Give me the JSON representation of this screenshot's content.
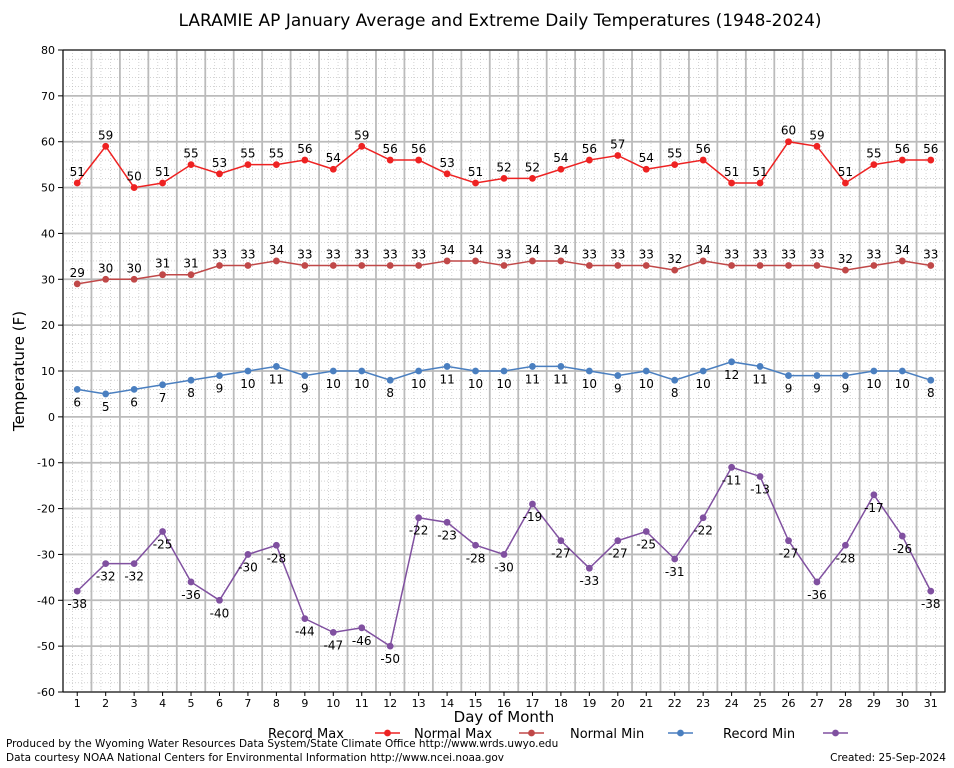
{
  "chart_data": {
    "type": "line",
    "title": "LARAMIE AP January Average and Extreme Daily Temperatures (1948-2024)",
    "xlabel": "Day of Month",
    "ylabel": "Temperature (F)",
    "ylim": [
      -60,
      80
    ],
    "yticks": [
      -60,
      -50,
      -40,
      -30,
      -20,
      -10,
      0,
      10,
      20,
      30,
      40,
      50,
      60,
      70,
      80
    ],
    "categories": [
      "1",
      "2",
      "3",
      "4",
      "5",
      "6",
      "7",
      "8",
      "9",
      "10",
      "11",
      "12",
      "13",
      "14",
      "15",
      "16",
      "17",
      "18",
      "19",
      "20",
      "21",
      "22",
      "23",
      "24",
      "25",
      "26",
      "27",
      "28",
      "29",
      "30",
      "31"
    ],
    "grid": true,
    "legend_position": "bottom",
    "series": [
      {
        "name": "Record Max",
        "color": "#ee2222",
        "label_position": "above",
        "values": [
          51,
          59,
          50,
          51,
          55,
          53,
          55,
          55,
          56,
          54,
          59,
          56,
          56,
          53,
          51,
          52,
          52,
          54,
          56,
          57,
          54,
          55,
          56,
          51,
          51,
          60,
          59,
          51,
          55,
          56,
          56
        ]
      },
      {
        "name": "Normal Max",
        "color": "#c04848",
        "label_position": "above",
        "values": [
          29,
          30,
          30,
          31,
          31,
          33,
          33,
          34,
          33,
          33,
          33,
          33,
          33,
          34,
          34,
          33,
          34,
          34,
          33,
          33,
          33,
          32,
          34,
          33,
          33,
          33,
          33,
          32,
          33,
          34,
          33
        ]
      },
      {
        "name": "Normal Min",
        "color": "#4a7fc0",
        "label_position": "below",
        "values": [
          6,
          5,
          6,
          7,
          8,
          9,
          10,
          11,
          9,
          10,
          10,
          8,
          10,
          11,
          10,
          10,
          11,
          11,
          10,
          9,
          10,
          8,
          10,
          12,
          11,
          9,
          9,
          9,
          10,
          10,
          8
        ]
      },
      {
        "name": "Record Min",
        "color": "#8050a0",
        "label_position": "below",
        "values": [
          -38,
          -32,
          -32,
          -25,
          -36,
          -40,
          -30,
          -28,
          -44,
          -47,
          -46,
          -50,
          -22,
          -23,
          -28,
          -30,
          -19,
          -27,
          -33,
          -27,
          -25,
          -31,
          -22,
          -11,
          -13,
          -27,
          -36,
          -28,
          -17,
          -26,
          -38
        ]
      }
    ]
  },
  "footer": {
    "produced_by": "Produced by the Wyoming Water Resources Data System/State Climate Office http://www.wrds.uwyo.edu",
    "data_courtesy": "Data courtesy NOAA National Centers for Environmental Information http://www.ncei.noaa.gov",
    "created": "Created:  25-Sep-2024"
  }
}
